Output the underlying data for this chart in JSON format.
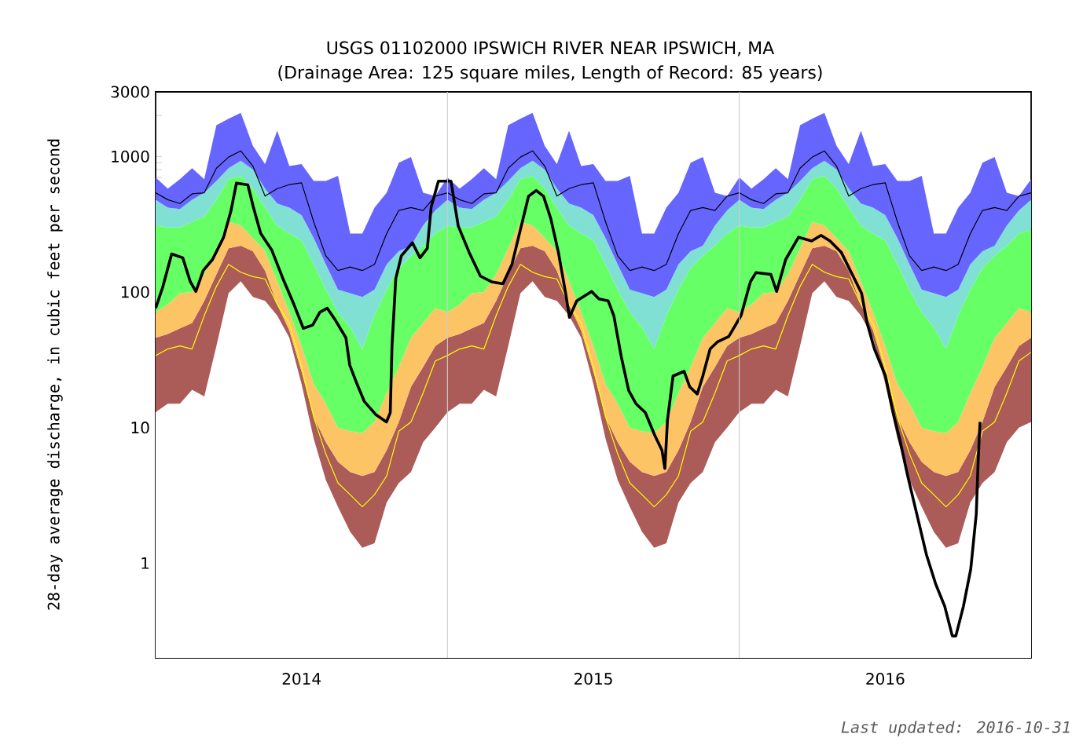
{
  "chart_data": {
    "type": "area",
    "stacked": true,
    "title": "USGS 01102000 IPSWICH RIVER NEAR IPSWICH, MA",
    "subtitle": "(Drainage Area: 125 square miles, Length of Record: 85 years)",
    "ylabel": "28-day average discharge, in cubic feet per second",
    "annotations": [
      "Last updated: 2016-10-31"
    ],
    "log": "y",
    "xlim": [
      2014,
      2017
    ],
    "ylim": [
      0.2,
      3000
    ],
    "xticks": [
      {
        "value": 2014.0833,
        "label": null
      },
      {
        "value": 2014.1667,
        "label": null
      },
      {
        "value": 2014.25,
        "label": null
      },
      {
        "value": 2014.3333,
        "label": null
      },
      {
        "value": 2014.4167,
        "label": null
      },
      {
        "value": 2014.5,
        "label": "2014"
      },
      {
        "value": 2014.5833,
        "label": null
      },
      {
        "value": 2014.6667,
        "label": null
      },
      {
        "value": 2014.75,
        "label": null
      },
      {
        "value": 2014.8333,
        "label": null
      },
      {
        "value": 2014.9167,
        "label": null
      },
      {
        "value": 2015.0833,
        "label": null
      },
      {
        "value": 2015.1667,
        "label": null
      },
      {
        "value": 2015.25,
        "label": null
      },
      {
        "value": 2015.3333,
        "label": null
      },
      {
        "value": 2015.4167,
        "label": null
      },
      {
        "value": 2015.5,
        "label": "2015"
      },
      {
        "value": 2015.5833,
        "label": null
      },
      {
        "value": 2015.6667,
        "label": null
      },
      {
        "value": 2015.75,
        "label": null
      },
      {
        "value": 2015.8333,
        "label": null
      },
      {
        "value": 2015.9167,
        "label": null
      },
      {
        "value": 2016.0833,
        "label": null
      },
      {
        "value": 2016.1667,
        "label": null
      },
      {
        "value": 2016.25,
        "label": null
      },
      {
        "value": 2016.3333,
        "label": null
      },
      {
        "value": 2016.4167,
        "label": null
      },
      {
        "value": 2016.5,
        "label": "2016"
      },
      {
        "value": 2016.5833,
        "label": null
      },
      {
        "value": 2016.6667,
        "label": null
      },
      {
        "value": 2016.75,
        "label": null
      },
      {
        "value": 2016.8333,
        "label": null
      },
      {
        "value": 2016.9167,
        "label": null
      }
    ],
    "yticks": [
      {
        "value": 0.2,
        "label": null
      },
      {
        "value": 0.3,
        "label": null
      },
      {
        "value": 0.4,
        "label": null
      },
      {
        "value": 0.5,
        "label": null
      },
      {
        "value": 0.6,
        "label": null
      },
      {
        "value": 0.7,
        "label": null
      },
      {
        "value": 0.8,
        "label": null
      },
      {
        "value": 0.9,
        "label": null
      },
      1,
      {
        "value": 2,
        "label": null
      },
      {
        "value": 3,
        "label": null
      },
      {
        "value": 4,
        "label": null
      },
      {
        "value": 5,
        "label": null
      },
      {
        "value": 6,
        "label": null
      },
      {
        "value": 7,
        "label": null
      },
      {
        "value": 8,
        "label": null
      },
      {
        "value": 9,
        "label": null
      },
      10,
      {
        "value": 20,
        "label": null
      },
      {
        "value": 30,
        "label": null
      },
      {
        "value": 40,
        "label": null
      },
      {
        "value": 50,
        "label": null
      },
      {
        "value": 60,
        "label": null
      },
      {
        "value": 70,
        "label": null
      },
      {
        "value": 80,
        "label": null
      },
      {
        "value": 90,
        "label": null
      },
      100,
      {
        "value": 200,
        "label": null
      },
      {
        "value": 300,
        "label": null
      },
      {
        "value": 400,
        "label": null
      },
      {
        "value": 500,
        "label": null
      },
      {
        "value": 600,
        "label": null
      },
      {
        "value": 700,
        "label": null
      },
      {
        "value": 800,
        "label": null
      },
      {
        "value": 900,
        "label": null
      },
      1000,
      {
        "value": 2000,
        "label": null
      },
      3000
    ],
    "ref_lines": [
      {
        "axis": "x",
        "value": 2015,
        "color": "#cccccc"
      },
      {
        "axis": "x",
        "value": 2016,
        "color": "#cccccc"
      }
    ],
    "x": [
      2014,
      2014.0417,
      2014.0833,
      2014.125,
      2014.1667,
      2014.2083,
      2014.25,
      2014.2917,
      2014.3333,
      2014.375,
      2014.4167,
      2014.4583,
      2014.5,
      2014.5417,
      2014.5833,
      2014.625,
      2014.6667,
      2014.7083,
      2014.75,
      2014.7917,
      2014.8333,
      2014.875,
      2014.9167,
      2014.9583,
      2015,
      2015.0417,
      2015.0833,
      2015.125,
      2015.1667,
      2015.2083,
      2015.25,
      2015.2917,
      2015.3333,
      2015.375,
      2015.4167,
      2015.4583,
      2015.5,
      2015.5417,
      2015.5833,
      2015.625,
      2015.6667,
      2015.7083,
      2015.75,
      2015.7917,
      2015.8333,
      2015.875,
      2015.9167,
      2015.9583,
      2016,
      2016.0417,
      2016.0833,
      2016.125,
      2016.1667,
      2016.2083,
      2016.25,
      2016.2917,
      2016.3333,
      2016.375,
      2016.4167,
      2016.4583,
      2016.5,
      2016.5417,
      2016.5833,
      2016.625,
      2016.6667,
      2016.7083,
      2016.75,
      2016.7917,
      2016.8333,
      2016.875,
      2016.9167,
      2016.9583,
      2017
    ],
    "series": [
      {
        "color": "#ffffff",
        "values": [
          13,
          15,
          15,
          19,
          17,
          40,
          98,
          120,
          92,
          86,
          67,
          46,
          21,
          8.3,
          4.1,
          2.6,
          1.7,
          1.3,
          1.4,
          2.8,
          3.9,
          4.7,
          7.8,
          10,
          13,
          15,
          15,
          19,
          17,
          40,
          98,
          120,
          92,
          86,
          67,
          46,
          21,
          8.3,
          4.1,
          2.6,
          1.7,
          1.3,
          1.4,
          2.8,
          3.9,
          4.7,
          7.8,
          10,
          13,
          15,
          15,
          19,
          17,
          40,
          98,
          120,
          92,
          86,
          67,
          46,
          21,
          8.3,
          4.1,
          2.6,
          1.7,
          1.3,
          1.4,
          2.8,
          3.9,
          4.7,
          7.8,
          10,
          11
        ]
      },
      {
        "color": "#ab5b58",
        "values": [
          33,
          34,
          39,
          40,
          69,
          95,
          112,
          100,
          108,
          58,
          14,
          6,
          5,
          3.7,
          3.7,
          3.0,
          3.0,
          3.1,
          3.3,
          4.0,
          7.1,
          15.3,
          20.2,
          30,
          33,
          34,
          39,
          40,
          69,
          95,
          112,
          100,
          108,
          58,
          14,
          6,
          5,
          3.7,
          3.7,
          3.0,
          3.0,
          3.1,
          3.3,
          4.0,
          7.1,
          15.3,
          20.2,
          30,
          33,
          34,
          39,
          40,
          69,
          95,
          112,
          100,
          108,
          58,
          14,
          6,
          5,
          3.7,
          3.7,
          3.0,
          3.0,
          3.1,
          3.3,
          4.0,
          7.1,
          15.3,
          20.2,
          30,
          35
        ]
      },
      {
        "color": "#fdc466",
        "values": [
          25,
          32,
          44,
          41,
          49,
          75,
          120,
          90,
          50,
          56,
          39,
          19,
          14,
          9,
          7.2,
          4.4,
          4.7,
          4.7,
          6.3,
          11.2,
          17,
          26,
          31,
          36,
          25,
          32,
          44,
          41,
          49,
          75,
          120,
          90,
          50,
          56,
          39,
          19,
          14,
          9,
          7.2,
          4.4,
          4.7,
          4.7,
          6.3,
          11.2,
          17,
          26,
          31,
          36,
          25,
          32,
          44,
          41,
          49,
          75,
          120,
          90,
          50,
          56,
          39,
          19,
          14,
          9,
          7.2,
          4.4,
          4.7,
          4.7,
          6.3,
          11.2,
          17,
          26,
          31,
          36,
          25
        ]
      },
      {
        "color": "#66ff66",
        "values": [
          239,
          219,
          202,
          230,
          225,
          270,
          350,
          410,
          330,
          220,
          190,
          199,
          200,
          139,
          89,
          61,
          45.6,
          28.9,
          56,
          86,
          122,
          139,
          161,
          194,
          239,
          219,
          202,
          230,
          225,
          270,
          350,
          410,
          330,
          220,
          190,
          199,
          200,
          139,
          89,
          61,
          45.6,
          28.9,
          56,
          86,
          122,
          139,
          161,
          194,
          239,
          219,
          202,
          230,
          225,
          270,
          350,
          410,
          330,
          220,
          190,
          199,
          200,
          139,
          89,
          61,
          45.6,
          28.9,
          56,
          86,
          122,
          139,
          161,
          194,
          219
        ]
      },
      {
        "color": "#80e0d4",
        "values": [
          170,
          120,
          110,
          150,
          180,
          180,
          140,
          210,
          220,
          160,
          140,
          150,
          130,
          90,
          56,
          33,
          43,
          54,
          37,
          56,
          50,
          35,
          90,
          130,
          170,
          120,
          110,
          150,
          180,
          180,
          140,
          210,
          220,
          160,
          140,
          150,
          130,
          90,
          56,
          33,
          43,
          54,
          37,
          56,
          50,
          35,
          90,
          130,
          170,
          120,
          110,
          150,
          180,
          180,
          140,
          210,
          220,
          160,
          140,
          150,
          130,
          90,
          56,
          33,
          43,
          54,
          37,
          56,
          50,
          35,
          90,
          130,
          190
        ]
      },
      {
        "color": "#6666ff",
        "values": [
          220,
          160,
          270,
          340,
          140,
          1040,
          1080,
          1170,
          400,
          300,
          1100,
          430,
          510,
          410,
          500,
          616,
          172,
          178,
          316,
          380,
          700,
          770,
          230,
          110,
          220,
          160,
          270,
          340,
          140,
          1040,
          1080,
          1170,
          400,
          300,
          1100,
          430,
          510,
          410,
          500,
          616,
          172,
          178,
          316,
          380,
          700,
          770,
          230,
          110,
          220,
          160,
          270,
          340,
          140,
          1040,
          1080,
          1170,
          400,
          300,
          1100,
          430,
          510,
          410,
          500,
          616,
          172,
          178,
          316,
          380,
          700,
          770,
          230,
          110,
          200
        ]
      },
      {
        "type": "line",
        "color": "#ffff00",
        "values": [
          34,
          38,
          40,
          38,
          67,
          110,
          160,
          140,
          130,
          125,
          81,
          59,
          28,
          12,
          6.4,
          3.9,
          3.2,
          2.6,
          3.2,
          4.4,
          9.4,
          11,
          18,
          31,
          34,
          38,
          40,
          38,
          67,
          110,
          160,
          140,
          130,
          125,
          81,
          59,
          28,
          12,
          6.4,
          3.9,
          3.2,
          2.6,
          3.2,
          4.4,
          9.4,
          11,
          18,
          31,
          34,
          38,
          40,
          38,
          67,
          110,
          160,
          140,
          130,
          125,
          81,
          59,
          28,
          12,
          6.4,
          3.9,
          3.2,
          2.6,
          3.2,
          4.4,
          9.4,
          11,
          18,
          31,
          36
        ]
      },
      {
        "type": "line",
        "color": "#000000",
        "values": [
          540,
          480,
          450,
          530,
          540,
          820,
          990,
          1100,
          850,
          510,
          580,
          620,
          640,
          330,
          185,
          144,
          153,
          144,
          160,
          270,
          400,
          420,
          400,
          510,
          540,
          480,
          450,
          530,
          540,
          820,
          990,
          1100,
          850,
          510,
          580,
          620,
          640,
          330,
          185,
          144,
          153,
          144,
          160,
          270,
          400,
          420,
          400,
          510,
          540,
          480,
          450,
          530,
          540,
          820,
          990,
          1100,
          850,
          510,
          580,
          620,
          640,
          330,
          185,
          144,
          153,
          144,
          160,
          270,
          400,
          420,
          400,
          510,
          540
        ]
      },
      {
        "type": "line",
        "color": "#000000",
        "x": [
          2014.0,
          2014.024,
          2014.055,
          2014.093,
          2014.119,
          2014.138,
          2014.163,
          2014.195,
          2014.233,
          2014.258,
          2014.277,
          2014.316,
          2014.335,
          2014.36,
          2014.398,
          2014.436,
          2014.474,
          2014.506,
          2014.538,
          2014.563,
          2014.588,
          2014.614,
          2014.652,
          2014.665,
          2014.69,
          2014.715,
          2014.754,
          2014.791,
          2014.804,
          2014.81,
          2014.823,
          2014.842,
          2014.88,
          2014.906,
          2014.931,
          2014.944,
          2014.969,
          2015.012,
          2015.037,
          2015.074,
          2015.113,
          2015.151,
          2015.19,
          2015.221,
          2015.253,
          2015.278,
          2015.304,
          2015.329,
          2015.354,
          2015.38,
          2015.405,
          2015.418,
          2015.443,
          2015.494,
          2015.519,
          2015.551,
          2015.57,
          2015.596,
          2015.621,
          2015.646,
          2015.678,
          2015.71,
          2015.735,
          2015.745,
          2015.754,
          2015.773,
          2015.811,
          2015.83,
          2015.856,
          2015.875,
          2015.9,
          2015.926,
          2015.964,
          2016.006,
          2016.038,
          2016.057,
          2016.108,
          2016.128,
          2016.159,
          2016.203,
          2016.248,
          2016.28,
          2016.311,
          2016.349,
          2016.387,
          2016.419,
          2016.438,
          2016.463,
          2016.501,
          2016.527,
          2016.552,
          2016.577,
          2016.615,
          2016.641,
          2016.673,
          2016.704,
          2016.73,
          2016.742,
          2016.768,
          2016.793,
          2016.812,
          2016.819,
          2016.825
        ],
        "values": [
          76,
          108,
          191,
          179,
          119,
          101,
          144,
          174,
          254,
          396,
          637,
          618,
          422,
          271,
          204,
          126,
          81,
          54,
          57,
          71,
          76,
          63,
          46,
          29,
          21,
          15.6,
          12.5,
          11.0,
          12.9,
          40,
          126,
          185,
          231,
          179,
          210,
          422,
          658,
          658,
          307,
          197,
          131,
          119,
          115,
          160,
          307,
          510,
          561,
          510,
          349,
          197,
          98,
          65,
          86,
          101,
          89,
          86,
          67,
          33,
          18.8,
          15,
          12.9,
          8.8,
          6.8,
          5.0,
          11.4,
          24,
          26,
          20,
          17.7,
          24,
          38,
          43,
          47,
          67,
          119,
          139,
          135,
          101,
          174,
          254,
          238,
          262,
          238,
          197,
          135,
          98,
          59,
          38,
          24,
          12.9,
          7.8,
          4.4,
          2.0,
          1.16,
          0.7,
          0.48,
          0.29,
          0.29,
          0.48,
          0.9,
          2.3,
          6.0,
          11.0
        ]
      }
    ]
  }
}
